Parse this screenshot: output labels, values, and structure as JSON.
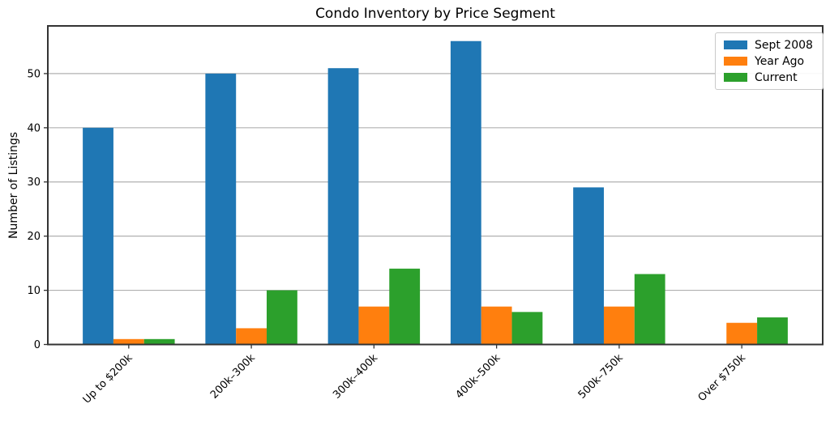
{
  "chart_data": {
    "type": "bar",
    "title": "Condo Inventory by Price Segment",
    "ylabel": "Number of Listings",
    "xlabel": "",
    "categories": [
      "Up to $200k",
      "200k–300k",
      "300k–400k",
      "400k–500k",
      "500k–750k",
      "Over $750k"
    ],
    "series": [
      {
        "name": "Sept 2008",
        "color": "#1f77b4",
        "values": [
          40,
          50,
          51,
          56,
          29,
          0
        ]
      },
      {
        "name": "Year Ago",
        "color": "#ff7f0e",
        "values": [
          1,
          3,
          7,
          7,
          7,
          4
        ]
      },
      {
        "name": "Current",
        "color": "#2ca02c",
        "values": [
          1,
          10,
          14,
          6,
          13,
          5
        ]
      }
    ],
    "yticks": [
      0,
      10,
      20,
      30,
      40,
      50
    ],
    "ylim": [
      0,
      58.8
    ],
    "bar_width": 0.25,
    "grid": "y",
    "legend_position": "upper right",
    "colors": {
      "grid": "#b0b0b0",
      "spine": "#333333",
      "tick": "#333333",
      "legend_border": "#c9c9c9"
    }
  }
}
